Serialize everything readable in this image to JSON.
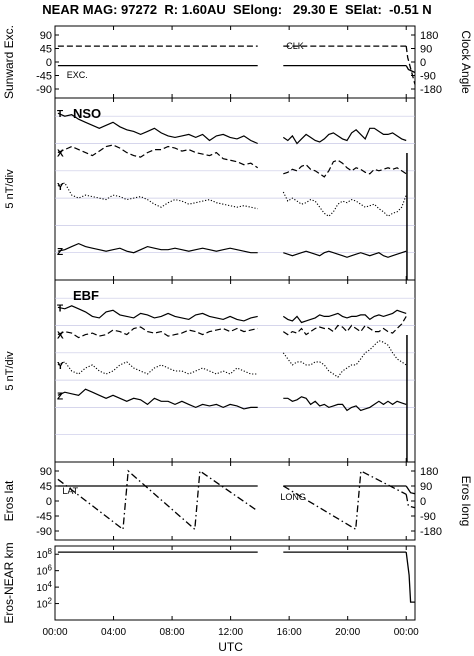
{
  "title": {
    "text": "NEAR MAG: 97272  R: 1.60AU  SElong:   29.30 E  SElat:  -0.51 N"
  },
  "chart_data": [
    {
      "id": "excitation",
      "type": "line",
      "left_axis": {
        "label": "Sunward Exc.",
        "ticks": [
          "90",
          "45",
          "0",
          "-45",
          "-90"
        ],
        "ylim": [
          -90,
          90
        ]
      },
      "right_axis": {
        "label": "Clock Angle",
        "ticks": [
          "180",
          "90",
          "0",
          "-90",
          "-180"
        ],
        "ylim": [
          -180,
          180
        ]
      },
      "annotations": [
        "CLK",
        "EXC."
      ],
      "series": [
        {
          "name": "CLK",
          "axis": "right",
          "style": "dashed",
          "segments": [
            {
              "x": [
                0.2,
                13.85
              ],
              "y": [
                106,
                106
              ]
            },
            {
              "x": [
                15.6,
                24.0
              ],
              "y": [
                106,
                106
              ]
            }
          ],
          "tail": {
            "x": [
              24.0,
              24.1,
              24.35,
              24.6
            ],
            "y": [
              106,
              30,
              -60,
              -150
            ]
          }
        },
        {
          "name": "EXC.",
          "axis": "left",
          "style": "solid",
          "segments": [
            {
              "x": [
                0.2,
                13.85
              ],
              "y": [
                -12,
                -12
              ]
            },
            {
              "x": [
                15.6,
                24.0
              ],
              "y": [
                -12,
                -12
              ]
            }
          ],
          "tail": {
            "x": [
              24.0,
              24.15,
              24.6
            ],
            "y": [
              -12,
              -25,
              -35
            ]
          }
        }
      ]
    },
    {
      "id": "nso",
      "type": "line",
      "title": "NSO",
      "ylabel": "5 nT/div",
      "series": [
        {
          "name": "T",
          "style": "solid",
          "seg1": [
            110,
            108,
            109,
            106,
            104,
            102,
            100,
            102,
            104,
            101,
            99,
            98,
            96,
            98,
            100,
            97,
            95,
            94,
            95,
            96,
            94,
            96,
            92,
            95,
            96,
            94,
            93,
            95,
            92,
            90
          ],
          "seg2": [
            94,
            92,
            95,
            90,
            93,
            96,
            94,
            92,
            91,
            93,
            96,
            97,
            95,
            93,
            92,
            97,
            99,
            96,
            93,
            100,
            100,
            98,
            96,
            96,
            97,
            95,
            93,
            92
          ]
        },
        {
          "name": "X",
          "style": "dashed",
          "seg1": [
            84,
            86,
            88,
            86,
            84,
            82,
            85,
            88,
            89,
            87,
            84,
            82,
            81,
            84,
            86,
            86,
            88,
            87,
            85,
            86,
            84,
            83,
            82,
            84,
            80,
            79,
            78,
            76,
            77,
            74
          ],
          "seg2": [
            70,
            71,
            73,
            72,
            75,
            76,
            73,
            72,
            70,
            68,
            72,
            78,
            79,
            77,
            74,
            72,
            74,
            73,
            71,
            70,
            73,
            72,
            73,
            74,
            73,
            74,
            72,
            70
          ]
        },
        {
          "name": "Y",
          "style": "dotted",
          "seg1": [
            62,
            64,
            56,
            54,
            56,
            55,
            54,
            53,
            56,
            55,
            53,
            54,
            55,
            53,
            50,
            48,
            51,
            53,
            52,
            50,
            51,
            52,
            53,
            51,
            50,
            49,
            48,
            49,
            48,
            47
          ],
          "seg2": [
            58,
            52,
            54,
            52,
            50,
            51,
            53,
            52,
            48,
            44,
            42,
            45,
            50,
            52,
            51,
            53,
            52,
            50,
            48,
            49,
            50,
            47,
            45,
            42,
            44,
            45,
            48,
            56
          ]
        },
        {
          "name": "Z",
          "style": "solid",
          "seg1": [
            19,
            20,
            22,
            24,
            22,
            21,
            20,
            19,
            20,
            21,
            19,
            18,
            20,
            22,
            21,
            20,
            20,
            21,
            20,
            19,
            20,
            21,
            20,
            19,
            20,
            21,
            20,
            19,
            18,
            18
          ],
          "seg2": [
            18,
            17,
            16,
            17,
            18,
            19,
            18,
            17,
            16,
            18,
            19,
            18,
            17,
            16,
            15,
            16,
            17,
            18,
            17,
            16,
            17,
            18,
            16,
            15,
            16,
            17,
            18,
            19
          ]
        }
      ]
    },
    {
      "id": "ebf",
      "type": "line",
      "title": "EBF",
      "ylabel": "5 nT/div",
      "series": [
        {
          "name": "T",
          "style": "solid",
          "seg1": [
            102,
            101,
            103,
            101,
            99,
            96,
            95,
            99,
            100,
            97,
            96,
            95,
            98,
            97,
            95,
            96,
            98,
            96,
            95,
            94,
            97,
            98,
            96,
            95,
            94,
            96,
            94,
            93,
            95,
            96
          ],
          "seg2": [
            96,
            94,
            93,
            96,
            92,
            93,
            94,
            95,
            97,
            96,
            96,
            97,
            98,
            96,
            95,
            96,
            96,
            97,
            97,
            94,
            96,
            97,
            96,
            97,
            98,
            100,
            99,
            98
          ]
        },
        {
          "name": "X",
          "style": "dashed",
          "seg1": [
            84,
            86,
            85,
            82,
            84,
            85,
            83,
            84,
            87,
            86,
            84,
            88,
            89,
            86,
            85,
            86,
            83,
            84,
            85,
            87,
            86,
            84,
            86,
            87,
            88,
            86,
            88,
            86,
            87,
            88
          ],
          "seg2": [
            86,
            84,
            86,
            85,
            88,
            84,
            86,
            88,
            89,
            88,
            88,
            86,
            90,
            89,
            86,
            90,
            88,
            86,
            90,
            88,
            86,
            86,
            88,
            86,
            85,
            88,
            91,
            96
          ]
        },
        {
          "name": "Y",
          "style": "dotted",
          "seg1": [
            64,
            66,
            60,
            58,
            62,
            64,
            60,
            58,
            60,
            64,
            66,
            62,
            60,
            58,
            62,
            64,
            62,
            60,
            60,
            58,
            60,
            62,
            60,
            58,
            60,
            58,
            62,
            60,
            58,
            58
          ],
          "seg2": [
            72,
            68,
            64,
            66,
            66,
            64,
            64,
            66,
            66,
            64,
            60,
            58,
            56,
            60,
            62,
            64,
            64,
            68,
            72,
            74,
            77,
            80,
            79,
            77,
            72,
            68,
            66,
            64
          ]
        },
        {
          "name": "Z",
          "style": "solid",
          "seg1": [
            44,
            46,
            45,
            44,
            48,
            46,
            44,
            42,
            44,
            42,
            40,
            42,
            41,
            38,
            42,
            40,
            40,
            38,
            40,
            38,
            36,
            38,
            37,
            38,
            36,
            38,
            37,
            35,
            36,
            36
          ],
          "seg2": [
            42,
            42,
            40,
            41,
            43,
            42,
            38,
            40,
            37,
            38,
            36,
            37,
            38,
            38,
            34,
            36,
            37,
            34,
            35,
            36,
            38,
            40,
            38,
            40,
            38,
            40,
            39,
            38
          ]
        }
      ]
    },
    {
      "id": "eros_position",
      "type": "line",
      "left_axis": {
        "label": "Eros lat",
        "ticks": [
          "90",
          "45",
          "0",
          "-45",
          "-90"
        ],
        "ylim": [
          -90,
          90
        ]
      },
      "right_axis": {
        "label": "Eros long",
        "ticks": [
          "180",
          "90",
          "0",
          "-90",
          "-180"
        ],
        "ylim": [
          -180,
          180
        ]
      },
      "annotations": [
        "LAT",
        "LONG"
      ],
      "series": [
        {
          "name": "LAT",
          "axis": "left",
          "style": "solid",
          "segments": [
            {
              "x": [
                0.2,
                13.85
              ],
              "y": [
                45,
                45
              ]
            },
            {
              "x": [
                15.6,
                24.0
              ],
              "y": [
                45,
                45
              ]
            }
          ],
          "tail": {
            "x": [
              24.0,
              24.3,
              24.6
            ],
            "y": [
              45,
              25,
              22
            ]
          }
        },
        {
          "name": "LONG",
          "axis": "right",
          "style": "dashdot",
          "segments": [
            {
              "x": [
                0.2,
                4.65,
                5.0,
                9.55,
                9.9,
                13.85
              ],
              "y": [
                130,
                -170,
                180,
                -170,
                180,
                -60
              ]
            },
            {
              "x": [
                15.6,
                20.55,
                20.9,
                24.0
              ],
              "y": [
                90,
                -170,
                180,
                40
              ]
            }
          ],
          "tail": {
            "x": [
              24.0,
              24.15,
              24.6
            ],
            "y": [
              40,
              -30,
              -40
            ]
          }
        }
      ]
    },
    {
      "id": "eros_near_distance",
      "type": "line",
      "left_axis": {
        "label": "Eros-NEAR km",
        "scale": "log",
        "ticks": [
          "10^8",
          "10^6",
          "10^4",
          "10^2"
        ],
        "ylim": [
          1,
          1000000000
        ]
      },
      "series": [
        {
          "name": "Eros-NEAR distance",
          "style": "solid",
          "segments": [
            {
              "x": [
                0.2,
                13.85
              ],
              "y": [
                180000000,
                180000000
              ]
            },
            {
              "x": [
                15.6,
                24.0
              ],
              "y": [
                180000000,
                180000000
              ]
            }
          ],
          "tail": {
            "x": [
              24.0,
              24.2,
              24.3,
              24.6
            ],
            "y": [
              180000000,
              300000,
              150,
              150
            ]
          }
        }
      ]
    }
  ],
  "time_axis": {
    "label": "UTC",
    "xlim": [
      0,
      24.6
    ],
    "ticks": [
      {
        "x": 0,
        "label": "00:00"
      },
      {
        "x": 4,
        "label": "04:00"
      },
      {
        "x": 8,
        "label": "08:00"
      },
      {
        "x": 12,
        "label": "12:00"
      },
      {
        "x": 16,
        "label": "16:00"
      },
      {
        "x": 20,
        "label": "20:00"
      },
      {
        "x": 24,
        "label": "00:00"
      }
    ]
  }
}
